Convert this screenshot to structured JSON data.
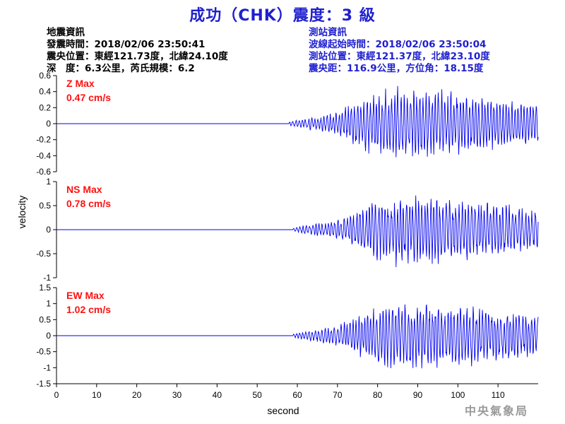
{
  "title": "成功（CHK）震度：3 級",
  "event_info": {
    "heading": "地震資訊",
    "origin_time": "發震時間：2018/02/06 23:50:41",
    "epicenter": "震央位置：東經121.73度，北緯24.10度",
    "depth_magnitude": "深　度：6.3公里，芮氏規模：6.2"
  },
  "station_info": {
    "heading": "測站資訊",
    "wave_start": "波線起始時間：2018/02/06 23:50:04",
    "location": "測站位置：東經121.37度，北緯23.10度",
    "distance": "震央距：116.9公里，方位角：18.15度"
  },
  "watermark": "中央氣象局",
  "colors": {
    "title": "#1f1fd0",
    "trace": "#0000ee",
    "max_label": "#ff1010",
    "station_text": "#1f1fd0"
  },
  "chart_data": {
    "type": "line",
    "xlabel": "second",
    "ylabel": "velocity",
    "xlim": [
      0,
      120
    ],
    "x_ticks": [
      0,
      10,
      20,
      30,
      40,
      50,
      60,
      70,
      80,
      90,
      100,
      110
    ],
    "panels": [
      {
        "id": "Z",
        "max_label": "Z Max",
        "max_value": "0.47 cm/s",
        "peak": 0.47,
        "ylim": [
          -0.6,
          0.6
        ],
        "y_ticks": [
          -0.6,
          -0.4,
          -0.2,
          0,
          0.2,
          0.4,
          0.6
        ],
        "onset_s": 58,
        "seed": 3
      },
      {
        "id": "NS",
        "max_label": "NS Max",
        "max_value": "0.78 cm/s",
        "peak": 0.78,
        "ylim": [
          -1,
          1
        ],
        "y_ticks": [
          -1,
          -0.5,
          0,
          0.5,
          1
        ],
        "onset_s": 59,
        "seed": 7
      },
      {
        "id": "EW",
        "max_label": "EW Max",
        "max_value": "1.02 cm/s",
        "peak": 1.02,
        "ylim": [
          -1.5,
          1.5
        ],
        "y_ticks": [
          -1.5,
          -1,
          -0.5,
          0,
          0.5,
          1,
          1.5
        ],
        "onset_s": 59,
        "seed": 11
      }
    ]
  }
}
